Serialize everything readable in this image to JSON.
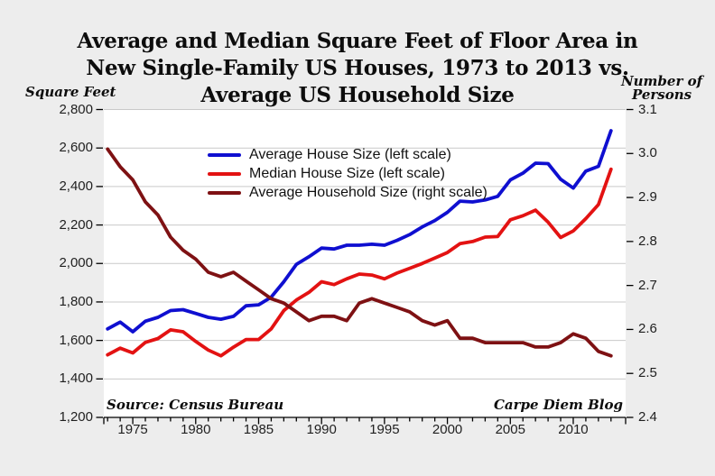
{
  "page": {
    "background_color": "#ededed",
    "plot_background_color": "#ffffff",
    "gridline_color": "#c9c9c9",
    "axis_color": "#000000",
    "text_color": "#1f1f1f"
  },
  "title": {
    "line1": "Average and Median Square Feet of Floor Area in",
    "line2": "New Single-Family US Houses, 1973 to 2013 vs.",
    "line3": "Average US Household Size"
  },
  "axis_titles": {
    "left": "Square Feet",
    "right_line1": "Number of",
    "right_line2": "Persons"
  },
  "annotations": {
    "source": "Source: Census Bureau",
    "credit": "Carpe Diem Blog"
  },
  "chart_data": {
    "type": "line",
    "grid": true,
    "legend_position": "inside-top-left",
    "x": [
      1973,
      1974,
      1975,
      1976,
      1977,
      1978,
      1979,
      1980,
      1981,
      1982,
      1983,
      1984,
      1985,
      1986,
      1987,
      1988,
      1989,
      1990,
      1991,
      1992,
      1993,
      1994,
      1995,
      1996,
      1997,
      1998,
      1999,
      2000,
      2001,
      2002,
      2003,
      2004,
      2005,
      2006,
      2007,
      2008,
      2009,
      2010,
      2011,
      2012,
      2013
    ],
    "x_axis": {
      "label_years": [
        1975,
        1980,
        1985,
        1990,
        1995,
        2000,
        2005,
        2010
      ],
      "label_texts": [
        "1975",
        "1980",
        "1985",
        "1990",
        "1995",
        "2000",
        "2005",
        "2010"
      ],
      "minor_tick_every_year": true
    },
    "left_axis": {
      "min": 1200,
      "max": 2800,
      "tick_values": [
        2800,
        2600,
        2400,
        2200,
        2000,
        1800,
        1600,
        1400,
        1200
      ],
      "tick_labels": [
        "2,800",
        "2,600",
        "2,400",
        "2,200",
        "2,000",
        "1,800",
        "1,600",
        "1,400",
        "1,200"
      ]
    },
    "right_axis": {
      "min": 2.4,
      "max": 3.1,
      "tick_values": [
        3.1,
        3.0,
        2.9,
        2.8,
        2.7,
        2.6,
        2.5,
        2.4
      ],
      "tick_labels": [
        "3.1",
        "3.0",
        "2.9",
        "2.8",
        "2.7",
        "2.6",
        "2.5",
        "2.4"
      ]
    },
    "series": [
      {
        "name": "Average House Size (left scale)",
        "slug": "average-house-size",
        "axis": "left",
        "color": "#0f0fd0",
        "values": [
          1660,
          1695,
          1645,
          1700,
          1720,
          1755,
          1760,
          1740,
          1720,
          1710,
          1725,
          1780,
          1785,
          1825,
          1905,
          1995,
          2035,
          2080,
          2075,
          2095,
          2095,
          2100,
          2095,
          2120,
          2150,
          2190,
          2223,
          2266,
          2324,
          2320,
          2330,
          2349,
          2434,
          2469,
          2521,
          2519,
          2438,
          2392,
          2480,
          2505,
          2690
        ]
      },
      {
        "name": "Median House Size (left scale)",
        "slug": "median-house-size",
        "axis": "left",
        "color": "#e31212",
        "values": [
          1525,
          1560,
          1535,
          1590,
          1610,
          1655,
          1645,
          1595,
          1550,
          1520,
          1565,
          1605,
          1605,
          1660,
          1755,
          1810,
          1850,
          1905,
          1890,
          1920,
          1945,
          1940,
          1920,
          1950,
          1975,
          2000,
          2028,
          2057,
          2103,
          2114,
          2137,
          2140,
          2227,
          2248,
          2277,
          2215,
          2135,
          2169,
          2233,
          2306,
          2490
        ]
      },
      {
        "name": "Average Household Size (right scale)",
        "slug": "average-household-size",
        "axis": "right",
        "color": "#7e1113",
        "values": [
          3.01,
          2.97,
          2.94,
          2.89,
          2.86,
          2.81,
          2.78,
          2.76,
          2.73,
          2.72,
          2.73,
          2.71,
          2.69,
          2.67,
          2.66,
          2.64,
          2.62,
          2.63,
          2.63,
          2.62,
          2.66,
          2.67,
          2.66,
          2.65,
          2.64,
          2.62,
          2.61,
          2.62,
          2.58,
          2.58,
          2.57,
          2.57,
          2.57,
          2.57,
          2.56,
          2.56,
          2.57,
          2.59,
          2.58,
          2.55,
          2.54
        ]
      }
    ]
  }
}
